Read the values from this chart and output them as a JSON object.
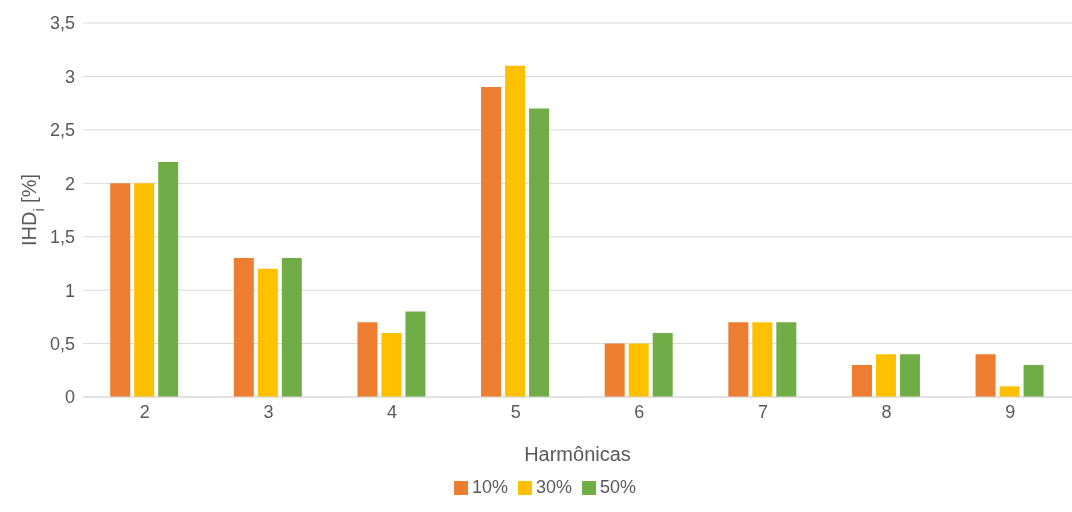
{
  "chart_data": {
    "type": "bar",
    "xlabel": "Harmônicas",
    "ylabel": "IHD$_{i}$ [%]",
    "categories": [
      "2",
      "3",
      "4",
      "5",
      "6",
      "7",
      "8",
      "9"
    ],
    "series": [
      {
        "name": "10%",
        "color": "#ed7d31",
        "values": [
          2.0,
          1.3,
          0.7,
          2.9,
          0.5,
          0.7,
          0.3,
          0.4
        ]
      },
      {
        "name": "30%",
        "color": "#ffc000",
        "values": [
          2.0,
          1.2,
          0.6,
          3.1,
          0.5,
          0.7,
          0.4,
          0.1
        ]
      },
      {
        "name": "50%",
        "color": "#70ad47",
        "values": [
          2.2,
          1.3,
          0.8,
          2.7,
          0.6,
          0.7,
          0.4,
          0.3
        ]
      }
    ],
    "ylim": [
      0,
      3.5
    ],
    "yticks": [
      0,
      {
        "value": 0.5,
        "label": "0,5"
      },
      1,
      {
        "value": 1.5,
        "label": "1,5"
      },
      2,
      {
        "value": 2.5,
        "label": "2,5"
      },
      3,
      {
        "value": 3.5,
        "label": "3,5"
      }
    ],
    "grid": "y",
    "legend": "bottom"
  }
}
